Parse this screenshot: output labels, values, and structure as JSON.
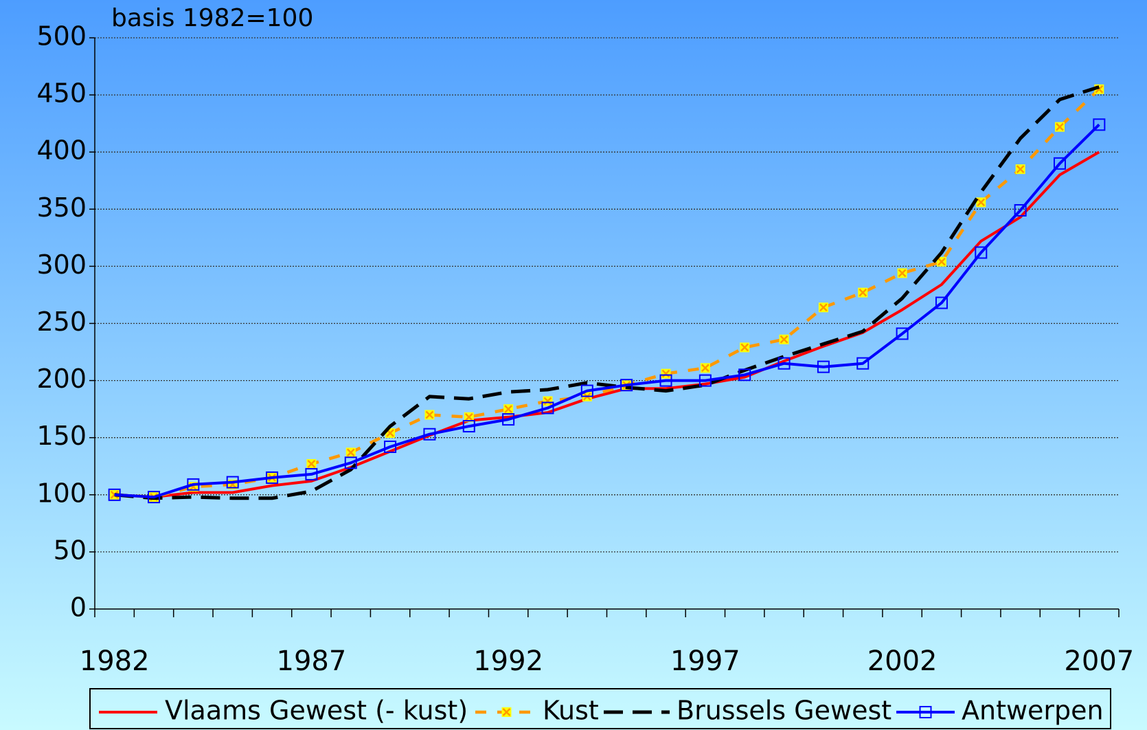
{
  "chart_data": {
    "type": "line",
    "subtitle": "basis 1982=100",
    "categories": [
      "1982",
      null,
      null,
      null,
      null,
      "1987",
      null,
      null,
      null,
      null,
      "1992",
      null,
      null,
      null,
      null,
      "1997",
      null,
      null,
      null,
      null,
      "2002",
      null,
      null,
      null,
      null,
      "2007"
    ],
    "series": [
      {
        "name": "Vlaams Gewest (- kust)",
        "color": "#ff0000",
        "dash": "solid",
        "marker": "none",
        "values": [
          100,
          98,
          102,
          102,
          108,
          112,
          124,
          138,
          152,
          165,
          168,
          172,
          184,
          193,
          193,
          197,
          203,
          217,
          230,
          242,
          262,
          284,
          322,
          343,
          380,
          400
        ]
      },
      {
        "name": "Kust",
        "color": "#ff9900",
        "dash": "dashed",
        "marker": "x",
        "values": [
          100,
          98,
          107,
          109,
          115,
          127,
          137,
          154,
          170,
          168,
          175,
          182,
          186,
          196,
          206,
          211,
          229,
          236,
          264,
          277,
          294,
          304,
          356,
          385,
          422,
          455
        ]
      },
      {
        "name": "Brussels Gewest",
        "color": "#000000",
        "dash": "longdash",
        "marker": "none",
        "values": [
          100,
          97,
          98,
          97,
          97,
          103,
          122,
          160,
          186,
          184,
          190,
          192,
          198,
          194,
          191,
          196,
          209,
          221,
          232,
          243,
          272,
          312,
          365,
          412,
          446,
          457
        ]
      },
      {
        "name": "Antwerpen",
        "color": "#0000ff",
        "dash": "solid",
        "marker": "square",
        "values": [
          100,
          98,
          109,
          111,
          115,
          118,
          128,
          142,
          153,
          160,
          166,
          176,
          191,
          196,
          200,
          200,
          205,
          215,
          212,
          215,
          241,
          268,
          312,
          349,
          390,
          424
        ]
      }
    ],
    "ylim": [
      0,
      500
    ],
    "yticks": [
      0,
      50,
      100,
      150,
      200,
      250,
      300,
      350,
      400,
      450,
      500
    ],
    "grid": true,
    "legend": "bottom"
  }
}
